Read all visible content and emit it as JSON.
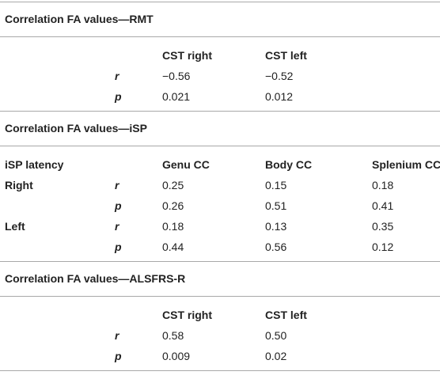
{
  "sections": [
    {
      "title": "Correlation FA values—RMT",
      "header": {
        "columns": [
          "CST right",
          "CST left"
        ]
      },
      "rows": [
        {
          "stat": "r",
          "values": [
            "−0.56",
            "−0.52"
          ]
        },
        {
          "stat": "p",
          "values": [
            "0.021",
            "0.012"
          ]
        }
      ]
    },
    {
      "title": "Correlation FA values—iSP",
      "header": {
        "label": "iSP latency",
        "columns": [
          "Genu CC",
          "Body CC",
          "Splenium CC"
        ]
      },
      "rows": [
        {
          "group": "Right",
          "stat": "r",
          "values": [
            "0.25",
            "0.15",
            "0.18"
          ]
        },
        {
          "stat": "p",
          "values": [
            "0.26",
            "0.51",
            "0.41"
          ]
        },
        {
          "group": "Left",
          "stat": "r",
          "values": [
            "0.18",
            "0.13",
            "0.35"
          ]
        },
        {
          "stat": "p",
          "values": [
            "0.44",
            "0.56",
            "0.12"
          ]
        }
      ]
    },
    {
      "title": "Correlation FA values—ALSFRS-R",
      "header": {
        "columns": [
          "CST right",
          "CST left"
        ]
      },
      "rows": [
        {
          "stat": "r",
          "values": [
            "0.58",
            "0.50"
          ]
        },
        {
          "stat": "p",
          "values": [
            "0.009",
            "0.02"
          ]
        }
      ]
    }
  ]
}
